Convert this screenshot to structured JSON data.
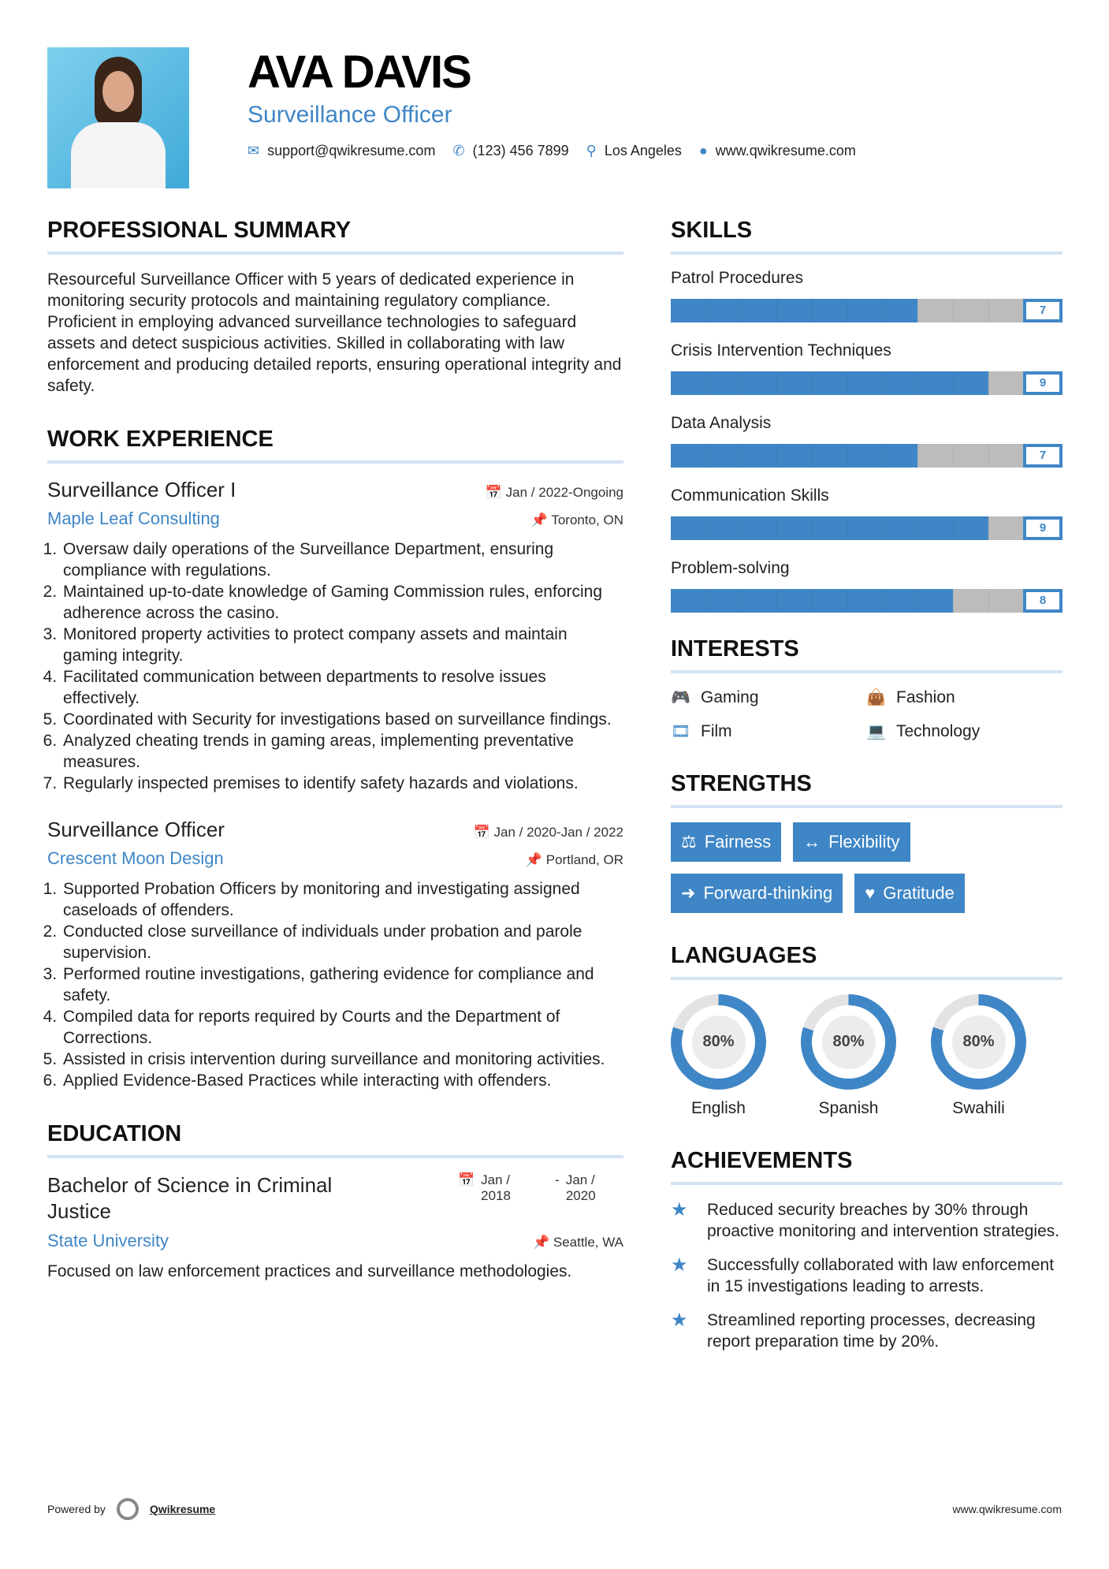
{
  "header": {
    "name": "AVA DAVIS",
    "title": "Surveillance Officer",
    "contacts": [
      {
        "icon": "envelope-icon",
        "text": "support@qwikresume.com"
      },
      {
        "icon": "phone-icon",
        "text": "(123) 456 7899"
      },
      {
        "icon": "map-pin-icon",
        "text": "Los Angeles"
      },
      {
        "icon": "globe-icon",
        "text": "www.qwikresume.com"
      }
    ]
  },
  "summary": {
    "heading": "PROFESSIONAL SUMMARY",
    "text": "Resourceful Surveillance Officer with 5 years of dedicated experience in monitoring security protocols and maintaining regulatory compliance. Proficient in employing advanced surveillance technologies to safeguard assets and detect suspicious activities. Skilled in collaborating with law enforcement and producing detailed reports, ensuring operational integrity and safety."
  },
  "work": {
    "heading": "WORK EXPERIENCE",
    "jobs": [
      {
        "title": "Surveillance Officer I",
        "date": "Jan / 2022-Ongoing",
        "company": "Maple Leaf Consulting",
        "location": "Toronto, ON",
        "bullets": [
          "Oversaw daily operations of the Surveillance Department, ensuring compliance with regulations.",
          "Maintained up-to-date knowledge of Gaming Commission rules, enforcing adherence across the casino.",
          "Monitored property activities to protect company assets and maintain gaming integrity.",
          "Facilitated communication between departments to resolve issues effectively.",
          "Coordinated with Security for investigations based on surveillance findings.",
          "Analyzed cheating trends in gaming areas, implementing preventative measures.",
          "Regularly inspected premises to identify safety hazards and violations."
        ]
      },
      {
        "title": "Surveillance Officer",
        "date": "Jan / 2020-Jan / 2022",
        "company": "Crescent Moon Design",
        "location": "Portland, OR",
        "bullets": [
          "Supported Probation Officers by monitoring and investigating assigned caseloads of offenders.",
          "Conducted close surveillance of individuals under probation and parole supervision.",
          "Performed routine investigations, gathering evidence for compliance and safety.",
          "Compiled data for reports required by Courts and the Department of Corrections.",
          "Assisted in crisis intervention during surveillance and monitoring activities.",
          "Applied Evidence-Based Practices while interacting with offenders."
        ]
      }
    ]
  },
  "education": {
    "heading": "EDUCATION",
    "degree": "Bachelor of Science in Criminal Justice",
    "start": "Jan / 2018",
    "end": "Jan / 2020",
    "separator": "-",
    "school": "State University",
    "location": "Seattle, WA",
    "text": "Focused on law enforcement practices and surveillance methodologies."
  },
  "skills": {
    "heading": "SKILLS",
    "max": 10,
    "accent": "#3f86c6",
    "items": [
      {
        "label": "Patrol Procedures",
        "value": 7
      },
      {
        "label": "Crisis Intervention Techniques",
        "value": 9
      },
      {
        "label": "Data Analysis",
        "value": 7
      },
      {
        "label": "Communication Skills",
        "value": 9
      },
      {
        "label": "Problem-solving",
        "value": 8
      }
    ]
  },
  "interests": {
    "heading": "INTERESTS",
    "items": [
      {
        "icon": "gamepad-icon",
        "label": "Gaming"
      },
      {
        "icon": "shopping-bag-icon",
        "label": "Fashion"
      },
      {
        "icon": "film-icon",
        "label": "Film"
      },
      {
        "icon": "laptop-icon",
        "label": "Technology"
      }
    ]
  },
  "strengths": {
    "heading": "STRENGTHS",
    "items": [
      {
        "icon": "balance-scale-icon",
        "label": "Fairness"
      },
      {
        "icon": "arrows-horizontal-icon",
        "label": "Flexibility"
      },
      {
        "icon": "arrow-right-icon",
        "label": "Forward-thinking"
      },
      {
        "icon": "heart-icon",
        "label": "Gratitude"
      }
    ]
  },
  "languages": {
    "heading": "LANGUAGES",
    "items": [
      {
        "label": "English",
        "percent": 80,
        "display": "80%"
      },
      {
        "label": "Spanish",
        "percent": 80,
        "display": "80%"
      },
      {
        "label": "Swahili",
        "percent": 80,
        "display": "80%"
      }
    ]
  },
  "achievements": {
    "heading": "ACHIEVEMENTS",
    "items": [
      "Reduced security breaches by 30% through proactive monitoring and intervention strategies.",
      "Successfully collaborated with law enforcement in 15 investigations leading to arrests.",
      "Streamlined reporting processes, decreasing report preparation time by 20%."
    ]
  },
  "footer": {
    "powered_by": "Powered by",
    "brand": "Qwikresume",
    "url": "www.qwikresume.com"
  }
}
